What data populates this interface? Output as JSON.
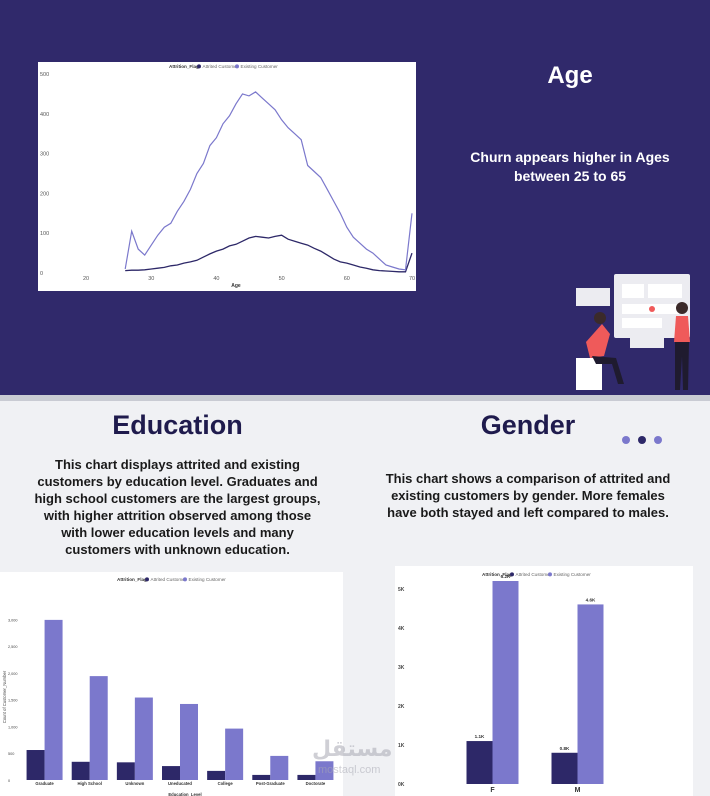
{
  "age_section": {
    "title": "Age",
    "description": "Churn appears higher in Ages between 25 to 65"
  },
  "education_section": {
    "title": "Education",
    "description": "This chart displays attrited and existing customers by education level. Graduates and high school customers are the largest groups, with higher attrition observed among those with lower education levels and many customers with unknown education."
  },
  "gender_section": {
    "title": "Gender",
    "description": "This chart shows a comparison of attrited and existing customers by gender. More females have both stayed and left compared to males."
  },
  "watermark": {
    "text": "مستقل",
    "sub": "mostaql.com"
  },
  "colors": {
    "attrited": "#2d2868",
    "existing": "#7b78cc",
    "background_dark": "#30296b",
    "background_light": "#f0f1f4"
  },
  "chart_data": [
    {
      "id": "age",
      "type": "line",
      "legend_title": "Attrition_Flag",
      "legend_placement": "top",
      "xlabel": "Age",
      "ylabel": "",
      "x_ticks": [
        20,
        30,
        40,
        50,
        60,
        70
      ],
      "y_ticks": [
        0,
        100,
        200,
        300,
        400,
        500
      ],
      "xlim": [
        16,
        70
      ],
      "ylim": [
        0,
        500
      ],
      "series": [
        {
          "name": "Attrited Customer",
          "x": [
            26,
            27,
            28,
            29,
            30,
            31,
            32,
            33,
            34,
            35,
            36,
            37,
            38,
            39,
            40,
            41,
            42,
            43,
            44,
            45,
            46,
            47,
            48,
            49,
            50,
            51,
            52,
            53,
            54,
            55,
            56,
            57,
            58,
            59,
            60,
            61,
            62,
            63,
            64,
            65,
            66,
            67,
            68,
            69,
            70
          ],
          "y": [
            6,
            7,
            7,
            8,
            10,
            12,
            14,
            18,
            20,
            25,
            28,
            32,
            40,
            48,
            55,
            60,
            68,
            72,
            80,
            88,
            92,
            90,
            88,
            92,
            95,
            85,
            80,
            75,
            70,
            62,
            55,
            45,
            35,
            28,
            25,
            20,
            15,
            12,
            8,
            6,
            5,
            4,
            3,
            3,
            50
          ]
        },
        {
          "name": "Existing Customer",
          "x": [
            26,
            27,
            28,
            29,
            30,
            31,
            32,
            33,
            34,
            35,
            36,
            37,
            38,
            39,
            40,
            41,
            42,
            43,
            44,
            45,
            46,
            47,
            48,
            49,
            50,
            51,
            52,
            53,
            54,
            55,
            56,
            57,
            58,
            59,
            60,
            61,
            62,
            63,
            64,
            65,
            66,
            67,
            68,
            69,
            70
          ],
          "y": [
            10,
            105,
            60,
            45,
            70,
            95,
            115,
            125,
            155,
            180,
            210,
            250,
            275,
            320,
            340,
            375,
            395,
            425,
            450,
            445,
            455,
            440,
            425,
            410,
            385,
            365,
            350,
            335,
            270,
            255,
            240,
            210,
            180,
            150,
            115,
            90,
            75,
            60,
            50,
            35,
            20,
            15,
            10,
            8,
            150
          ]
        }
      ]
    },
    {
      "id": "education",
      "type": "bar",
      "legend_title": "Attrition_Flag",
      "legend_placement": "top",
      "xlabel": "Education_Level",
      "ylabel": "Count of Customer_Number",
      "categories": [
        "Graduate",
        "High School",
        "Unknown",
        "Uneducated",
        "College",
        "Post-Graduate",
        "Doctorate"
      ],
      "y_ticks": [
        "0",
        "500",
        "1,000",
        "1,500",
        "2,000",
        "2,500",
        "3,000"
      ],
      "ylim": [
        0,
        3100
      ],
      "series": [
        {
          "name": "Attrited Customer",
          "values": [
            560,
            340,
            330,
            260,
            170,
            95,
            95
          ]
        },
        {
          "name": "Existing Customer",
          "values": [
            2990,
            1940,
            1540,
            1420,
            960,
            450,
            350
          ]
        }
      ]
    },
    {
      "id": "gender",
      "type": "bar",
      "legend_title": "Attrition_Flag",
      "legend_placement": "top",
      "xlabel": "",
      "ylabel": "",
      "categories": [
        "F",
        "M"
      ],
      "y_ticks": [
        "0K",
        "1K",
        "2K",
        "3K",
        "4K",
        "5K"
      ],
      "ylim": [
        0,
        5200
      ],
      "data_labels": [
        [
          "1.1K",
          "5.2K"
        ],
        [
          "0.8K",
          "4.6K"
        ]
      ],
      "series": [
        {
          "name": "Attrited Customer",
          "values": [
            1100,
            800
          ]
        },
        {
          "name": "Existing Customer",
          "values": [
            5200,
            4600
          ]
        }
      ]
    }
  ]
}
